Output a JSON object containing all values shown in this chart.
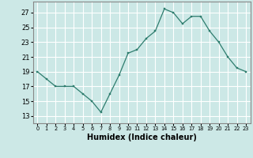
{
  "x": [
    0,
    1,
    2,
    3,
    4,
    5,
    6,
    7,
    8,
    9,
    10,
    11,
    12,
    13,
    14,
    15,
    16,
    17,
    18,
    19,
    20,
    21,
    22,
    23
  ],
  "y": [
    19,
    18,
    17,
    17,
    17,
    16,
    15,
    13.5,
    16,
    18.5,
    21.5,
    22,
    23.5,
    24.5,
    27.5,
    27,
    25.5,
    26.5,
    26.5,
    24.5,
    23,
    21,
    19.5,
    19
  ],
  "line_color": "#2e7d6e",
  "marker_color": "#2e7d6e",
  "bg_color": "#cce8e6",
  "grid_color": "#ffffff",
  "xlabel": "Humidex (Indice chaleur)",
  "xlabel_fontsize": 7,
  "xtick_labels": [
    "0",
    "1",
    "2",
    "3",
    "4",
    "5",
    "6",
    "7",
    "8",
    "9",
    "10",
    "11",
    "12",
    "13",
    "14",
    "15",
    "16",
    "17",
    "18",
    "19",
    "20",
    "21",
    "22",
    "23"
  ],
  "yticks": [
    13,
    15,
    17,
    19,
    21,
    23,
    25,
    27
  ],
  "ylim": [
    12.0,
    28.5
  ],
  "xlim": [
    -0.5,
    23.5
  ]
}
